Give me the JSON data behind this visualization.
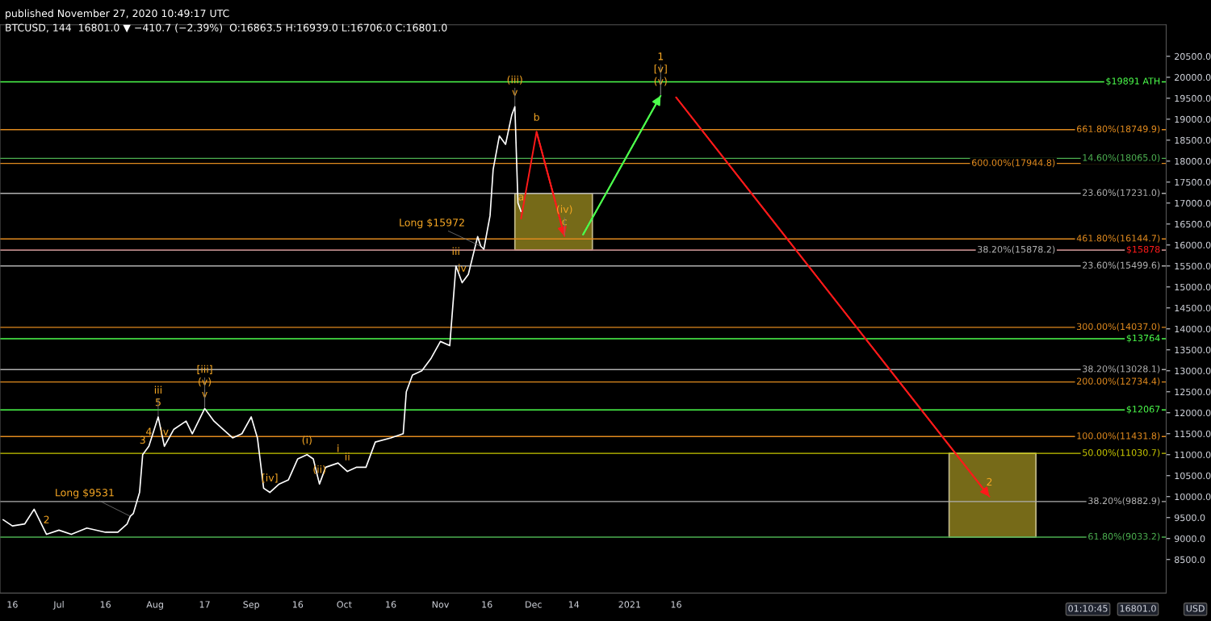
{
  "chart_data": {
    "type": "line",
    "title": "published November 27, 2020 10:49:17 UTC",
    "subtitle": "BTCUSD, 144  16801.0 ▼ −410.7 (−2.39%)  O:16863.5 H:16939.0 L:16706.0 C:16801.0",
    "xlim": [
      "2020-06-12",
      "2021-06-23"
    ],
    "xticks": [
      {
        "value": "2020-06-16",
        "label": "16"
      },
      {
        "value": "2020-07-01",
        "label": "Jul"
      },
      {
        "value": "2020-07-16",
        "label": "16"
      },
      {
        "value": "2020-08-01",
        "label": "Aug"
      },
      {
        "value": "2020-08-17",
        "label": "17"
      },
      {
        "value": "2020-09-01",
        "label": "Sep"
      },
      {
        "value": "2020-09-16",
        "label": "16"
      },
      {
        "value": "2020-10-01",
        "label": "Oct"
      },
      {
        "value": "2020-10-16",
        "label": "16"
      },
      {
        "value": "2020-11-01",
        "label": "Nov"
      },
      {
        "value": "2020-11-16",
        "label": "16"
      },
      {
        "value": "2020-12-01",
        "label": "Dec"
      },
      {
        "value": "2020-12-14",
        "label": "14"
      },
      {
        "value": "2021-01-01",
        "label": "2021"
      },
      {
        "value": "2021-01-16",
        "label": "16"
      }
    ],
    "ylim": [
      7700,
      21250
    ],
    "yticks": [
      {
        "value": 8500,
        "label": "8500.0"
      },
      {
        "value": 9000,
        "label": "9000.0"
      },
      {
        "value": 9500,
        "label": "9500.0"
      },
      {
        "value": 10000,
        "label": "10000.0"
      },
      {
        "value": 10500,
        "label": "10500.0"
      },
      {
        "value": 11000,
        "label": "11000.0"
      },
      {
        "value": 11500,
        "label": "11500.0"
      },
      {
        "value": 12000,
        "label": "12000.0"
      },
      {
        "value": 12500,
        "label": "12500.0"
      },
      {
        "value": 13000,
        "label": "13000.0"
      },
      {
        "value": 13500,
        "label": "13500.0"
      },
      {
        "value": 14000,
        "label": "14000.0"
      },
      {
        "value": 14500,
        "label": "14500.0"
      },
      {
        "value": 15000,
        "label": "15000.0"
      },
      {
        "value": 15500,
        "label": "15500.0"
      },
      {
        "value": 16000,
        "label": "16000.0"
      },
      {
        "value": 16500,
        "label": "16500.0"
      },
      {
        "value": 17000,
        "label": "17000.0"
      },
      {
        "value": 17500,
        "label": "17500.0"
      },
      {
        "value": 18000,
        "label": "18000.0"
      },
      {
        "value": 18500,
        "label": "18500.0"
      },
      {
        "value": 19000,
        "label": "19000.0"
      },
      {
        "value": 19500,
        "label": "19500.0"
      },
      {
        "value": 20000,
        "label": "20000.0"
      },
      {
        "value": 20500,
        "label": "20500.0"
      }
    ],
    "grid": false,
    "legend": false,
    "series": [
      {
        "color": "#ffffff",
        "x": [
          "2020-06-13",
          "2020-06-16",
          "2020-06-20",
          "2020-06-23",
          "2020-06-27",
          "2020-07-01",
          "2020-07-05",
          "2020-07-10",
          "2020-07-16",
          "2020-07-20",
          "2020-07-23",
          "2020-07-24",
          "2020-07-25",
          "2020-07-27",
          "2020-07-28",
          "2020-07-30",
          "2020-08-02",
          "2020-08-04",
          "2020-08-07",
          "2020-08-11",
          "2020-08-13",
          "2020-08-17",
          "2020-08-20",
          "2020-08-23",
          "2020-08-26",
          "2020-08-29",
          "2020-09-01",
          "2020-09-03",
          "2020-09-05",
          "2020-09-07",
          "2020-09-10",
          "2020-09-13",
          "2020-09-16",
          "2020-09-19",
          "2020-09-21",
          "2020-09-23",
          "2020-09-25",
          "2020-09-29",
          "2020-10-02",
          "2020-10-05",
          "2020-10-08",
          "2020-10-11",
          "2020-10-16",
          "2020-10-20",
          "2020-10-21",
          "2020-10-23",
          "2020-10-26",
          "2020-10-29",
          "2020-11-01",
          "2020-11-04",
          "2020-11-06",
          "2020-11-08",
          "2020-11-10",
          "2020-11-13",
          "2020-11-14",
          "2020-11-15",
          "2020-11-17",
          "2020-11-18",
          "2020-11-20",
          "2020-11-22",
          "2020-11-24",
          "2020-11-25",
          "2020-11-26",
          "2020-11-27"
        ],
        "values": [
          9450,
          9300,
          9350,
          9700,
          9100,
          9200,
          9100,
          9250,
          9150,
          9150,
          9350,
          9531,
          9600,
          10100,
          11000,
          11200,
          11900,
          11200,
          11600,
          11800,
          11500,
          12100,
          11800,
          11600,
          11400,
          11500,
          11900,
          11400,
          10200,
          10100,
          10300,
          10400,
          10900,
          11000,
          10900,
          10300,
          10700,
          10800,
          10600,
          10700,
          10700,
          11300,
          11400,
          11500,
          12500,
          12900,
          13000,
          13300,
          13700,
          13600,
          15500,
          15100,
          15300,
          16200,
          15972,
          15900,
          16700,
          17800,
          18600,
          18400,
          19100,
          19300,
          17000,
          16800
        ]
      },
      {
        "type": "line",
        "color": "#ff1a1a",
        "x": [
          "2020-11-27",
          "2020-12-02",
          "2020-12-11"
        ],
        "values": [
          16630,
          18700,
          16210
        ]
      },
      {
        "type": "line",
        "color": "#4cff4c",
        "x": [
          "2020-12-17",
          "2021-01-11"
        ],
        "values": [
          16250,
          19560
        ]
      },
      {
        "type": "line",
        "color": "#ff1a1a",
        "x": [
          "2021-01-16",
          "2021-04-27"
        ],
        "values": [
          19520,
          10000
        ]
      },
      {
        "type": "area",
        "color": "#8b7d1c",
        "x": [
          "2020-11-25",
          "2020-12-20"
        ],
        "values": [
          null,
          null
        ],
        "lower": [
          15878.2,
          15878.2
        ],
        "upper": [
          17231,
          17231
        ]
      },
      {
        "type": "area",
        "color": "#8b7d1c",
        "x": [
          "2021-04-14",
          "2021-05-12"
        ],
        "values": [
          null,
          null
        ],
        "lower": [
          9033.2,
          9033.2
        ],
        "upper": [
          11030.7,
          11030.7
        ]
      }
    ],
    "ref_lines": [
      {
        "axis": "y",
        "value": 19891,
        "label": "$19891 ATH",
        "color": "#4cff4c"
      },
      {
        "axis": "y",
        "value": 18749.9,
        "label": "661.80%(18749.9)",
        "color": "#e08a1e"
      },
      {
        "axis": "y",
        "value": 18065.0,
        "label": "14.60%(18065.0)",
        "color": "#4caf50"
      },
      {
        "axis": "y",
        "value": 17944.8,
        "label": "600.00%(17944.8)",
        "color": "#e08a1e"
      },
      {
        "axis": "y",
        "value": 17231.0,
        "label": "23.60%(17231.0)",
        "color": "#b0b0b0"
      },
      {
        "axis": "y",
        "value": 16144.7,
        "label": "461.80%(16144.7)",
        "color": "#e08a1e"
      },
      {
        "axis": "y",
        "value": 15878,
        "label": "$15878",
        "color": "#ff1a1a"
      },
      {
        "axis": "y",
        "value": 15878.2,
        "label": "38.20%(15878.2)",
        "color": "#b0b0b0"
      },
      {
        "axis": "y",
        "value": 15499.6,
        "label": "23.60%(15499.6)",
        "color": "#b0b0b0"
      },
      {
        "axis": "y",
        "value": 14037.0,
        "label": "300.00%(14037.0)",
        "color": "#e08a1e"
      },
      {
        "axis": "y",
        "value": 13764,
        "label": "$13764",
        "color": "#4cff4c"
      },
      {
        "axis": "y",
        "value": 13028.1,
        "label": "38.20%(13028.1)",
        "color": "#b0b0b0"
      },
      {
        "axis": "y",
        "value": 12734.4,
        "label": "200.00%(12734.4)",
        "color": "#e08a1e"
      },
      {
        "axis": "y",
        "value": 12067,
        "label": "$12067",
        "color": "#4cff4c"
      },
      {
        "axis": "y",
        "value": 11431.8,
        "label": "100.00%(11431.8)",
        "color": "#e08a1e"
      },
      {
        "axis": "y",
        "value": 11030.7,
        "label": "50.00%(11030.7)",
        "color": "#c8c800"
      },
      {
        "axis": "y",
        "value": 9882.9,
        "label": "38.20%(9882.9)",
        "color": "#b0b0b0"
      },
      {
        "axis": "y",
        "value": 9033.2,
        "label": "61.80%(9033.2)",
        "color": "#4caf50"
      }
    ],
    "annotations": [
      {
        "text": "2",
        "x": "2020-06-27",
        "y": 9100
      },
      {
        "text": "3",
        "x": "2020-07-28",
        "y": 11000
      },
      {
        "text": "4",
        "x": "2020-07-30",
        "y": 11200
      },
      {
        "text": "5",
        "x": "2020-08-02",
        "y": 11900
      },
      {
        "text": "iii",
        "x": "2020-08-02",
        "y": 11900
      },
      {
        "text": "iv",
        "x": "2020-08-04",
        "y": 11200
      },
      {
        "text": "Long $9531",
        "x": "2020-07-24",
        "y": 9531
      },
      {
        "text": "v",
        "x": "2020-08-17",
        "y": 12100
      },
      {
        "text": "(v)",
        "x": "2020-08-17",
        "y": 12100
      },
      {
        "text": "[iii]",
        "x": "2020-08-17",
        "y": 12100
      },
      {
        "text": "[iv]",
        "x": "2020-09-07",
        "y": 10100
      },
      {
        "text": "(i)",
        "x": "2020-09-19",
        "y": 11000
      },
      {
        "text": "(ii)",
        "x": "2020-09-23",
        "y": 10300
      },
      {
        "text": "i",
        "x": "2020-09-29",
        "y": 10800
      },
      {
        "text": "ii",
        "x": "2020-10-02",
        "y": 10600
      },
      {
        "text": "iii",
        "x": "2020-11-06",
        "y": 15500
      },
      {
        "text": "iv",
        "x": "2020-11-08",
        "y": 15100
      },
      {
        "text": "Long $15972",
        "x": "2020-11-14",
        "y": 15972
      },
      {
        "text": "v",
        "x": "2020-11-25",
        "y": 19300
      },
      {
        "text": "(iii)",
        "x": "2020-11-25",
        "y": 19300
      },
      {
        "text": "a",
        "x": "2020-11-27",
        "y": 16800
      },
      {
        "text": "b",
        "x": "2020-12-02",
        "y": 18700
      },
      {
        "text": "c",
        "x": "2020-12-11",
        "y": 16210
      },
      {
        "text": "(iv)",
        "x": "2020-12-11",
        "y": 16210
      },
      {
        "text": "(v)",
        "x": "2021-01-11",
        "y": 19560
      },
      {
        "text": "[v]",
        "x": "2021-01-11",
        "y": 19560
      },
      {
        "text": "1",
        "x": "2021-01-11",
        "y": 19560
      },
      {
        "text": "2",
        "x": "2021-04-27",
        "y": 10000
      },
      "USD",
      "16801.0",
      "01:10:45"
    ]
  }
}
